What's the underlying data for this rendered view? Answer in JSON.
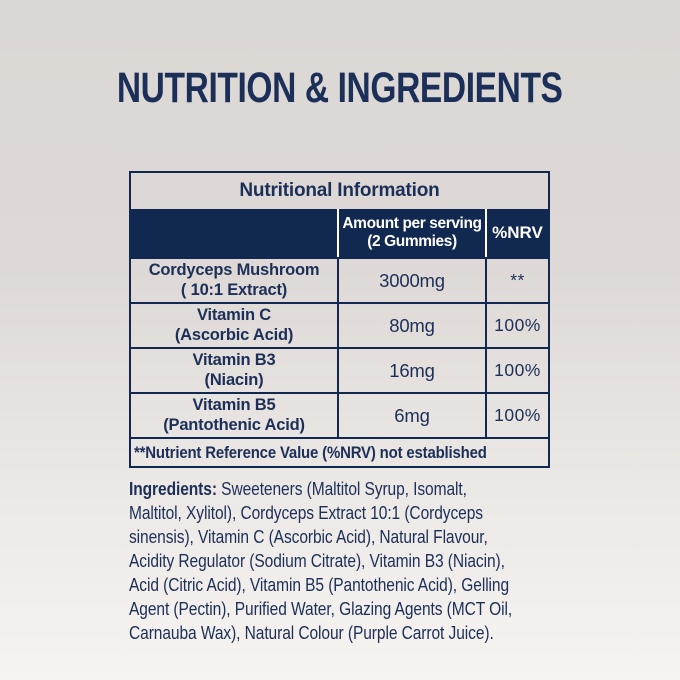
{
  "page": {
    "title": "NUTRITION & INGREDIENTS"
  },
  "colors": {
    "navy": "#112950",
    "navy_text": "#1c2f58",
    "bg_top": "#dbd7d4",
    "bg_mid": "#ded9d6",
    "bg_bottom": "#f6f3f1",
    "header_text": "#ffffff"
  },
  "table": {
    "title": "Nutritional Information",
    "header": {
      "amount_lines": [
        "Amount per serving",
        "(2 Gummies)"
      ],
      "nrv_label": "%NRV"
    },
    "rows": [
      {
        "name_lines": [
          "Cordyceps Mushroom",
          "( 10:1 Extract)"
        ],
        "amount": "3000mg",
        "nrv": "**"
      },
      {
        "name_lines": [
          "Vitamin C",
          "(Ascorbic Acid)"
        ],
        "amount": "80mg",
        "nrv": "100%"
      },
      {
        "name_lines": [
          "Vitamin B3",
          "(Niacin)"
        ],
        "amount": "16mg",
        "nrv": "100%"
      },
      {
        "name_lines": [
          "Vitamin B5",
          "(Pantothenic Acid)"
        ],
        "amount": "6mg",
        "nrv": "100%"
      }
    ],
    "footnote": "**Nutrient Reference Value (%NRV) not established"
  },
  "ingredients": {
    "label": "Ingredients:",
    "lines": [
      " Sweeteners (Maltitol Syrup, Isomalt,",
      "Maltitol, Xylitol), Cordyceps Extract 10:1 (Cordyceps",
      "sinensis), Vitamin C (Ascorbic Acid), Natural Flavour,",
      "Acidity Regulator (Sodium Citrate), Vitamin B3 (Niacin),",
      "Acid (Citric Acid), Vitamin B5 (Pantothenic Acid), Gelling",
      "Agent (Pectin), Purified Water, Glazing Agents (MCT Oil,",
      "Carnauba Wax), Natural Colour (Purple Carrot Juice)."
    ]
  }
}
